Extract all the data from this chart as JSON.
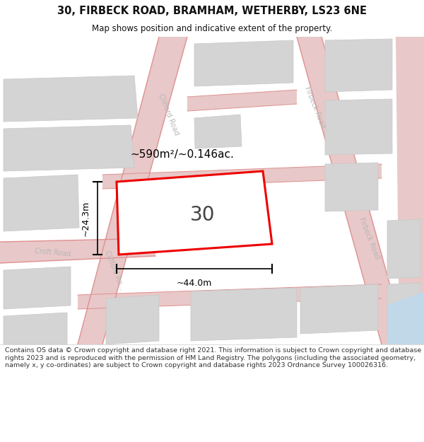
{
  "title_line1": "30, FIRBECK ROAD, BRAMHAM, WETHERBY, LS23 6NE",
  "title_line2": "Map shows position and indicative extent of the property.",
  "area_label": "~590m²/~0.146ac.",
  "property_number": "30",
  "dim_width": "~44.0m",
  "dim_height": "~24.3m",
  "footer_text": "Contains OS data © Crown copyright and database right 2021. This information is subject to Crown copyright and database rights 2023 and is reproduced with the permission of HM Land Registry. The polygons (including the associated geometry, namely x, y co-ordinates) are subject to Crown copyright and database rights 2023 Ordnance Survey 100026316.",
  "map_bg": "#f2f2f2",
  "road_fill": "#e8c8c8",
  "road_line": "#e09090",
  "block_fill": "#d4d4d4",
  "block_edge": "#c8c8c8",
  "property_edge": "#ee0000",
  "property_fill": "#ffffff",
  "road_label_color": "#b8b8b8",
  "dim_color": "#000000",
  "water_color": "#c0d8e8",
  "title_color": "#111111",
  "footer_color": "#333333"
}
